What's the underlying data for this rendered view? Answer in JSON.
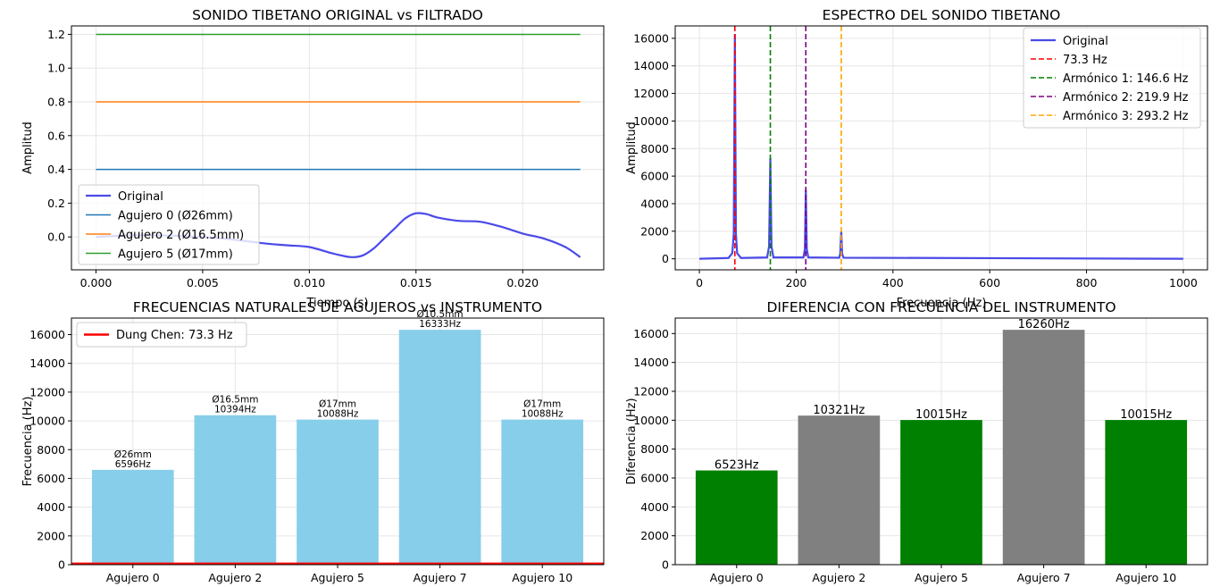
{
  "chart_data": [
    {
      "type": "line",
      "title": "SONIDO TIBETANO ORIGINAL vs FILTRADO",
      "xlabel": "Tiempo (s)",
      "ylabel": "Amplitud",
      "xlim": [
        -0.00115,
        0.0238
      ],
      "ylim": [
        -0.195,
        1.25
      ],
      "xticks": [
        0.0,
        0.005,
        0.01,
        0.015,
        0.02
      ],
      "xtick_labels": [
        "0.000",
        "0.005",
        "0.010",
        "0.015",
        "0.020"
      ],
      "yticks": [
        0.0,
        0.2,
        0.4,
        0.6,
        0.8,
        1.0,
        1.2
      ],
      "ytick_labels": [
        "0.0",
        "0.2",
        "0.4",
        "0.6",
        "0.8",
        "1.0",
        "1.2"
      ],
      "grid": true,
      "legend_position": "lower-left",
      "series": [
        {
          "name": "Original",
          "color": "#4a4ae8",
          "x": [
            0.0,
            0.002,
            0.004,
            0.006,
            0.008,
            0.009,
            0.01,
            0.011,
            0.0115,
            0.012,
            0.0125,
            0.013,
            0.0135,
            0.014,
            0.0145,
            0.015,
            0.0155,
            0.016,
            0.017,
            0.018,
            0.019,
            0.02,
            0.021,
            0.022,
            0.0227
          ],
          "y": [
            0.0,
            0.01,
            0.005,
            -0.01,
            -0.04,
            -0.05,
            -0.06,
            -0.095,
            -0.11,
            -0.12,
            -0.11,
            -0.07,
            -0.01,
            0.05,
            0.11,
            0.14,
            0.135,
            0.115,
            0.095,
            0.09,
            0.06,
            0.02,
            -0.01,
            -0.06,
            -0.12
          ]
        },
        {
          "name": "Agujero 0 (Ø26mm)",
          "color": "#1f77b4",
          "x": [
            0.0,
            0.0227
          ],
          "y": [
            0.4,
            0.4
          ]
        },
        {
          "name": "Agujero 2 (Ø16.5mm)",
          "color": "#ff7f0e",
          "x": [
            0.0,
            0.0227
          ],
          "y": [
            0.8,
            0.8
          ]
        },
        {
          "name": "Agujero 5 (Ø17mm)",
          "color": "#2ca02c",
          "x": [
            0.0,
            0.0227
          ],
          "y": [
            1.2,
            1.2
          ]
        }
      ]
    },
    {
      "type": "line",
      "title": "ESPECTRO DEL SONIDO TIBETANO",
      "xlabel": "Frecuencia (Hz)",
      "ylabel": "Amplitud",
      "xlim": [
        -50,
        1050
      ],
      "ylim": [
        -800,
        16900
      ],
      "xticks": [
        0,
        200,
        400,
        600,
        800,
        1000
      ],
      "xtick_labels": [
        "0",
        "200",
        "400",
        "600",
        "800",
        "1000"
      ],
      "yticks": [
        0,
        2000,
        4000,
        6000,
        8000,
        10000,
        12000,
        14000,
        16000
      ],
      "ytick_labels": [
        "0",
        "2000",
        "4000",
        "6000",
        "8000",
        "10000",
        "12000",
        "14000",
        "16000"
      ],
      "grid": true,
      "legend_position": "upper-right",
      "series": [
        {
          "name": "Original",
          "color": "#4a4ae8",
          "x": [
            0,
            60,
            68,
            71,
            73.3,
            75.5,
            78,
            86,
            140,
            144,
            146.6,
            149,
            153,
            215,
            218,
            219.9,
            222,
            225,
            289,
            291,
            293.2,
            295,
            298,
            1000
          ],
          "y": [
            0,
            60,
            400,
            1800,
            16300,
            1800,
            400,
            60,
            100,
            900,
            7300,
            900,
            100,
            100,
            700,
            5000,
            700,
            100,
            80,
            350,
            2000,
            350,
            80,
            0
          ]
        },
        {
          "name": "73.3 Hz",
          "color": "#ff0000",
          "x": [
            73.3
          ],
          "style": "dashed-vertical"
        },
        {
          "name": "Armónico 1: 146.6 Hz",
          "color": "#008000",
          "x": [
            146.6
          ],
          "style": "dashed-vertical"
        },
        {
          "name": "Armónico 2: 219.9 Hz",
          "color": "#800080",
          "x": [
            219.9
          ],
          "style": "dashed-vertical"
        },
        {
          "name": "Armónico 3: 293.2 Hz",
          "color": "#ffa500",
          "x": [
            293.2
          ],
          "style": "dashed-vertical"
        }
      ]
    },
    {
      "type": "bar",
      "title": "FRECUENCIAS NATURALES DE AGUJEROS vs INSTRUMENTO",
      "xlabel": "",
      "ylabel": "Frecuencia (Hz)",
      "ylim": [
        0,
        17150
      ],
      "yticks": [
        0,
        2000,
        4000,
        6000,
        8000,
        10000,
        12000,
        14000,
        16000
      ],
      "ytick_labels": [
        "0",
        "2000",
        "4000",
        "6000",
        "8000",
        "10000",
        "12000",
        "14000",
        "16000"
      ],
      "grid": true,
      "legend_position": "upper-left",
      "categories": [
        "Agujero 0",
        "Agujero 2",
        "Agujero 5",
        "Agujero 7",
        "Agujero 10"
      ],
      "values": [
        6596,
        10394,
        10088,
        16333,
        10088
      ],
      "bar_color": "#87ceeb",
      "bar_labels": [
        {
          "line1": "Ø26mm",
          "line2": "6596Hz"
        },
        {
          "line1": "Ø16.5mm",
          "line2": "10394Hz"
        },
        {
          "line1": "Ø17mm",
          "line2": "10088Hz"
        },
        {
          "line1": "Ø10.5mm",
          "line2": "16333Hz"
        },
        {
          "line1": "Ø17mm",
          "line2": "10088Hz"
        }
      ],
      "reference_line": {
        "name": "Dung Chen: 73.3 Hz",
        "value": 73.3,
        "color": "#ff0000"
      }
    },
    {
      "type": "bar",
      "title": "DIFERENCIA CON FRECUENCIA DEL INSTRUMENTO",
      "xlabel": "",
      "ylabel": "Diferencia (Hz)",
      "ylim": [
        0,
        17073
      ],
      "yticks": [
        0,
        2000,
        4000,
        6000,
        8000,
        10000,
        12000,
        14000,
        16000
      ],
      "ytick_labels": [
        "0",
        "2000",
        "4000",
        "6000",
        "8000",
        "10000",
        "12000",
        "14000",
        "16000"
      ],
      "grid": true,
      "categories": [
        "Agujero 0",
        "Agujero 2",
        "Agujero 5",
        "Agujero 7",
        "Agujero 10"
      ],
      "values": [
        6523,
        10321,
        10015,
        16260,
        10015
      ],
      "bar_colors": [
        "#008000",
        "#808080",
        "#008000",
        "#808080",
        "#008000"
      ],
      "bar_labels": [
        "6523Hz",
        "10321Hz",
        "10015Hz",
        "16260Hz",
        "10015Hz"
      ]
    }
  ]
}
